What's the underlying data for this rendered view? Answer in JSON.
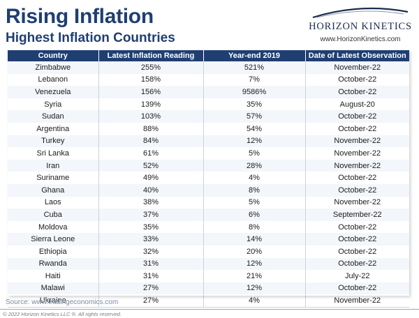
{
  "header": {
    "title": "Rising Inflation",
    "subtitle": "Highest Inflation Countries"
  },
  "logo": {
    "brand": "HORIZON KINETICS",
    "website": "www.HorizonKinetics.com"
  },
  "table": {
    "headers": [
      "Country",
      "Latest Inflation Reading",
      "Year-end 2019",
      "Date of Latest Observation"
    ],
    "rows": [
      [
        "Zimbabwe",
        "255%",
        "521%",
        "November-22"
      ],
      [
        "Lebanon",
        "158%",
        "7%",
        "October-22"
      ],
      [
        "Venezuela",
        "156%",
        "9586%",
        "October-22"
      ],
      [
        "Syria",
        "139%",
        "35%",
        "August-20"
      ],
      [
        "Sudan",
        "103%",
        "57%",
        "October-22"
      ],
      [
        "Argentina",
        "88%",
        "54%",
        "October-22"
      ],
      [
        "Turkey",
        "84%",
        "12%",
        "November-22"
      ],
      [
        "Sri Lanka",
        "61%",
        "5%",
        "November-22"
      ],
      [
        "Iran",
        "52%",
        "28%",
        "November-22"
      ],
      [
        "Suriname",
        "49%",
        "4%",
        "October-22"
      ],
      [
        "Ghana",
        "40%",
        "8%",
        "October-22"
      ],
      [
        "Laos",
        "38%",
        "5%",
        "November-22"
      ],
      [
        "Cuba",
        "37%",
        "6%",
        "September-22"
      ],
      [
        "Moldova",
        "35%",
        "8%",
        "October-22"
      ],
      [
        "Sierra Leone",
        "33%",
        "14%",
        "October-22"
      ],
      [
        "Ethiopia",
        "32%",
        "20%",
        "October-22"
      ],
      [
        "Rwanda",
        "31%",
        "12%",
        "October-22"
      ],
      [
        "Haiti",
        "31%",
        "21%",
        "July-22"
      ],
      [
        "Malawi",
        "27%",
        "12%",
        "October-22"
      ],
      [
        "Ukraine",
        "27%",
        "4%",
        "November-22"
      ]
    ]
  },
  "source": "Source: www.tradingeconomics.com",
  "footer": "© 2022 Horizon Kinetics LLC ®. All rights reserved.",
  "colors": {
    "header_navy": "#1f3f73",
    "stripe": "#f3f6fa"
  }
}
